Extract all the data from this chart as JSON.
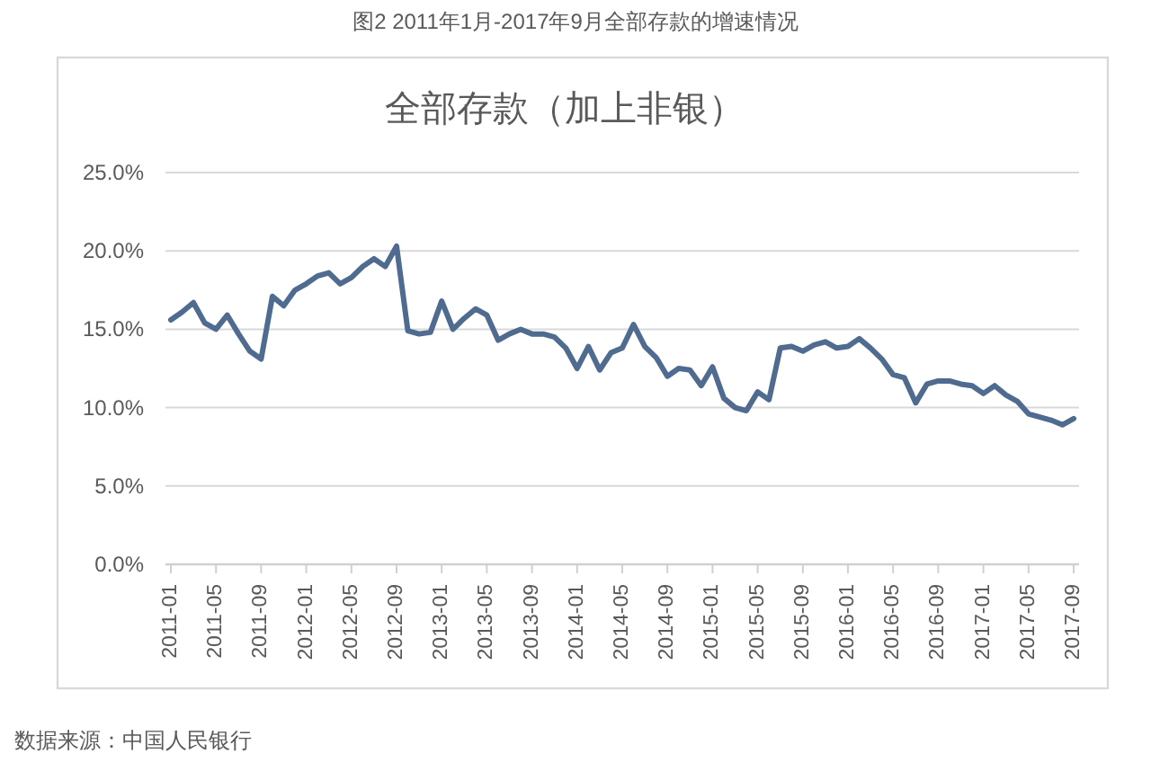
{
  "chart_data": {
    "type": "line",
    "title": "图2 2011年1月-2017年9月全部存款的增速情况",
    "subtitle": "全部存款（加上非银）",
    "annotations": [
      "数据来源：中国人民银行"
    ],
    "categories": [
      "2011-01",
      null,
      null,
      null,
      "2011-05",
      null,
      null,
      null,
      "2011-09",
      null,
      null,
      null,
      "2012-01",
      null,
      null,
      null,
      "2012-05",
      null,
      null,
      null,
      "2012-09",
      null,
      null,
      null,
      "2013-01",
      null,
      null,
      null,
      "2013-05",
      null,
      null,
      null,
      "2013-09",
      null,
      null,
      null,
      "2014-01",
      null,
      null,
      null,
      "2014-05",
      null,
      null,
      null,
      "2014-09",
      null,
      null,
      null,
      "2015-01",
      null,
      null,
      null,
      "2015-05",
      null,
      null,
      null,
      "2015-09",
      null,
      null,
      null,
      "2016-01",
      null,
      null,
      null,
      "2016-05",
      null,
      null,
      null,
      "2016-09",
      null,
      null,
      null,
      "2017-01",
      null,
      null,
      null,
      "2017-05",
      null,
      null,
      null,
      "2017-09"
    ],
    "series": [
      {
        "color": "#4f6b90",
        "values": [
          15.6,
          16.1,
          16.7,
          15.4,
          15.0,
          15.9,
          14.7,
          13.6,
          13.1,
          17.1,
          16.5,
          17.5,
          17.9,
          18.4,
          18.6,
          17.9,
          18.3,
          19.0,
          19.5,
          19.0,
          20.3,
          14.9,
          14.7,
          14.8,
          16.8,
          15.0,
          15.7,
          16.3,
          15.9,
          14.3,
          14.7,
          15.0,
          14.7,
          14.7,
          14.5,
          13.8,
          12.5,
          13.9,
          12.4,
          13.5,
          13.8,
          15.3,
          13.9,
          13.2,
          12.0,
          12.5,
          12.4,
          11.4,
          12.6,
          10.6,
          10.0,
          9.8,
          11.0,
          10.5,
          13.8,
          13.9,
          13.6,
          14.0,
          14.2,
          13.8,
          13.9,
          14.4,
          13.8,
          13.1,
          12.1,
          11.9,
          10.3,
          11.5,
          11.7,
          11.7,
          11.5,
          11.4,
          10.9,
          11.4,
          10.8,
          10.4,
          9.6,
          9.4,
          9.2,
          8.9,
          9.3
        ]
      }
    ],
    "ylim": [
      0,
      25
    ],
    "yticks": [
      {
        "value": 0,
        "label": "0.0%"
      },
      {
        "value": 5,
        "label": "5.0%"
      },
      {
        "value": 10,
        "label": "10.0%"
      },
      {
        "value": 15,
        "label": "15.0%"
      },
      {
        "value": 20,
        "label": "20.0%"
      },
      {
        "value": 25,
        "label": "25.0%"
      }
    ],
    "grid": "y",
    "line_style": "solid"
  }
}
